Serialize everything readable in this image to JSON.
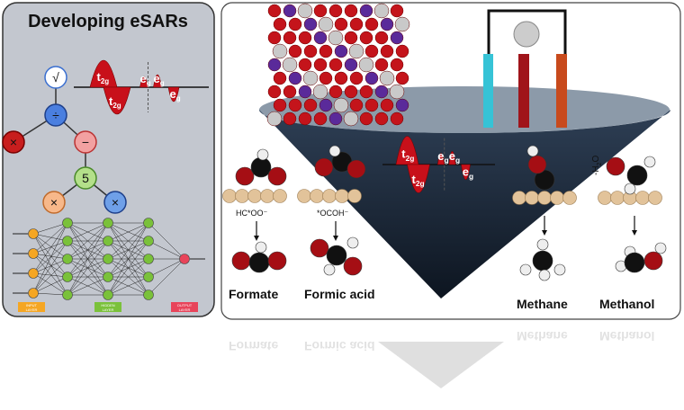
{
  "left_panel": {
    "title": "Developing eSARs",
    "tree_nodes": [
      "√",
      "÷",
      "×",
      "−",
      "5",
      "×",
      "×"
    ],
    "orbital_labels": [
      {
        "base": "t",
        "sub": "2g"
      },
      {
        "base": "t",
        "sub": "2g"
      },
      {
        "base": "e",
        "sub": "g"
      },
      {
        "base": "e",
        "sub": "g"
      },
      {
        "base": "e",
        "sub": "g"
      }
    ],
    "layers": [
      [
        "INPUT",
        "LAYER"
      ],
      [
        "HIDDEN",
        "LAYER"
      ],
      [
        "OUTPUT",
        "LAYER"
      ]
    ]
  },
  "right_panel": {
    "orbital_labels": [
      {
        "base": "t",
        "sub": "2g"
      },
      {
        "base": "t",
        "sub": "2g"
      },
      {
        "base": "e",
        "sub": "g"
      },
      {
        "base": "e",
        "sub": "g"
      },
      {
        "base": "e",
        "sub": "g"
      }
    ],
    "intermediates": [
      "HC*OO⁻",
      "*OCOH⁻"
    ],
    "water_loss": {
      "pre": "-H",
      "sub": "2",
      "post": "O"
    },
    "products": [
      "Formate",
      "Formic acid",
      "Methane",
      "Methanol"
    ]
  }
}
